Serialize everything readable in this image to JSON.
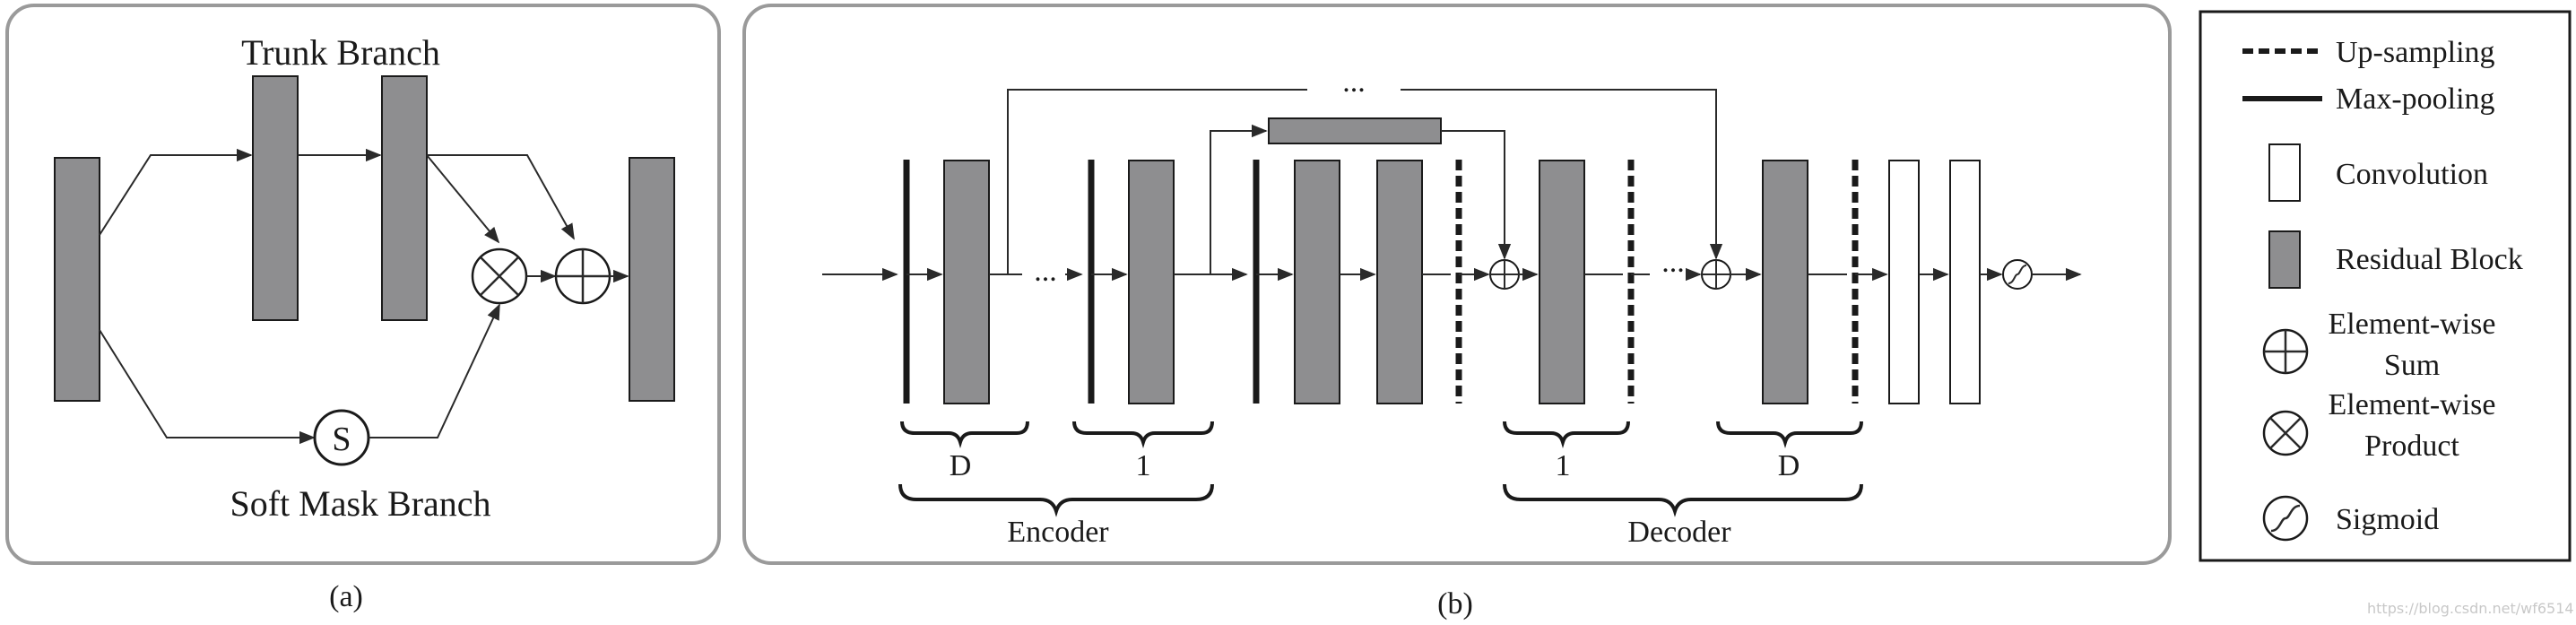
{
  "panel_a": {
    "title": "Trunk Branch",
    "mask_label": "Soft Mask Branch",
    "sigmoid_glyph": "S",
    "caption": "(a)"
  },
  "panel_b": {
    "top_dots": "...",
    "mid_dots_1": "...",
    "mid_dots_2": "...",
    "brace_d_left": "D",
    "brace_1_left": "1",
    "brace_1_right": "1",
    "brace_d_right": "D",
    "encoder_label": "Encoder",
    "decoder_label": "Decoder",
    "caption": "(b)"
  },
  "legend": {
    "items": [
      {
        "label": "Up-sampling",
        "icon": "dashed-line-icon"
      },
      {
        "label": "Max-pooling",
        "icon": "solid-line-icon"
      },
      {
        "label": "Convolution",
        "icon": "white-rectangle-icon"
      },
      {
        "label": "Residual Block",
        "icon": "gray-rectangle-icon"
      },
      {
        "label_line1": "Element-wise",
        "label_line2": "Sum",
        "icon": "circle-plus-icon"
      },
      {
        "label_line1": "Element-wise",
        "label_line2": "Product",
        "icon": "circle-times-icon"
      },
      {
        "label": "Sigmoid",
        "icon": "sigmoid-icon"
      }
    ]
  },
  "watermark": "https://blog.csdn.net/wf6514"
}
